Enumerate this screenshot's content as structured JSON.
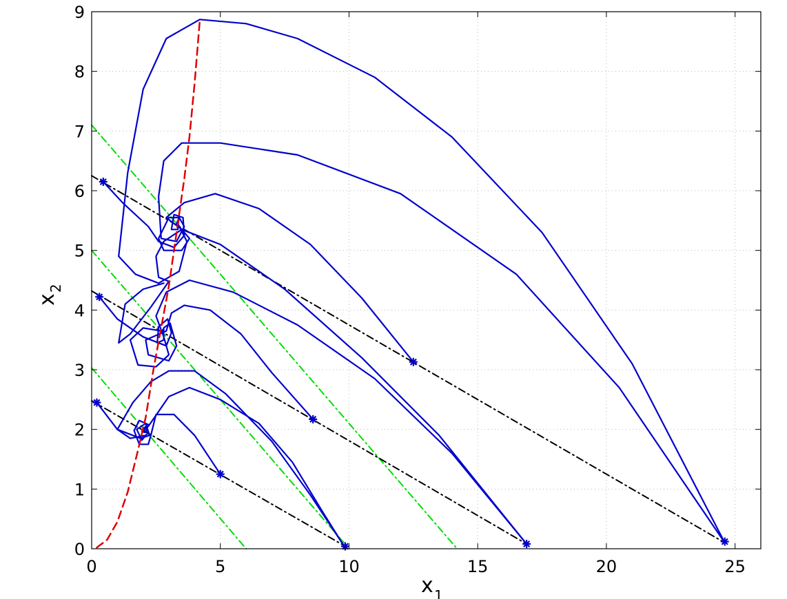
{
  "chart_data": {
    "type": "line",
    "xlim": [
      0,
      26
    ],
    "ylim": [
      0,
      9
    ],
    "xticks": [
      0,
      5,
      10,
      15,
      20,
      25
    ],
    "yticks": [
      0,
      1,
      2,
      3,
      4,
      5,
      6,
      7,
      8,
      9
    ],
    "xlabel": {
      "main": "x",
      "sub": "1"
    },
    "ylabel": {
      "main": "x",
      "sub": "2"
    },
    "grid": true,
    "legend": "none",
    "colors": {
      "trajectory": "#0000cc",
      "nullcline": "#e00000",
      "black_line": "#000000",
      "green_line": "#00dd00"
    },
    "series": [
      {
        "role": "nullcline",
        "style": "dashed-red",
        "points": [
          [
            0.2,
            0.02
          ],
          [
            0.6,
            0.15
          ],
          [
            1.0,
            0.45
          ],
          [
            1.4,
            0.95
          ],
          [
            1.8,
            1.65
          ],
          [
            2.1,
            2.2
          ],
          [
            2.4,
            3.0
          ],
          [
            2.7,
            3.7
          ],
          [
            3.0,
            4.4
          ],
          [
            3.3,
            5.3
          ],
          [
            3.6,
            6.2
          ],
          [
            3.8,
            6.9
          ],
          [
            4.0,
            7.8
          ],
          [
            4.2,
            8.85
          ]
        ]
      },
      {
        "role": "black",
        "style": "dashdot-black",
        "points": [
          [
            0,
            2.48
          ],
          [
            9.9,
            0.03
          ]
        ]
      },
      {
        "role": "black",
        "style": "dashdot-black",
        "points": [
          [
            0,
            4.32
          ],
          [
            16.9,
            0.08
          ]
        ]
      },
      {
        "role": "black",
        "style": "dashdot-black",
        "points": [
          [
            0,
            6.25
          ],
          [
            24.6,
            0.1
          ]
        ]
      },
      {
        "role": "green",
        "style": "dashdot-green",
        "points": [
          [
            0,
            3.03
          ],
          [
            6.0,
            0
          ]
        ]
      },
      {
        "role": "green",
        "style": "dashdot-green",
        "points": [
          [
            0,
            5.0
          ],
          [
            10.0,
            0
          ]
        ]
      },
      {
        "role": "green",
        "style": "dashdot-green",
        "points": [
          [
            0,
            7.1
          ],
          [
            14.2,
            0
          ]
        ]
      },
      {
        "role": "trajectory",
        "style": "solid-blue",
        "points": [
          [
            0.2,
            2.45
          ],
          [
            1.0,
            2.0
          ],
          [
            1.9,
            1.85
          ],
          [
            2.25,
            1.9
          ],
          [
            2.1,
            2.1
          ],
          [
            1.75,
            2.0
          ],
          [
            1.95,
            1.82
          ],
          [
            2.2,
            1.95
          ],
          [
            2.1,
            2.05
          ],
          [
            1.95,
            1.97
          ],
          [
            2.05,
            1.95
          ]
        ]
      },
      {
        "role": "trajectory",
        "style": "solid-blue",
        "points": [
          [
            5.0,
            1.25
          ],
          [
            4.0,
            1.9
          ],
          [
            3.2,
            2.25
          ],
          [
            2.5,
            2.25
          ],
          [
            2.3,
            1.9
          ],
          [
            2.2,
            1.75
          ],
          [
            1.85,
            1.75
          ],
          [
            1.65,
            1.98
          ],
          [
            1.85,
            2.15
          ],
          [
            2.2,
            2.08
          ],
          [
            2.1,
            1.95
          ],
          [
            2.0,
            1.98
          ]
        ]
      },
      {
        "role": "trajectory",
        "style": "solid-blue",
        "points": [
          [
            9.8,
            0.05
          ],
          [
            9.0,
            0.6
          ],
          [
            7.8,
            1.45
          ],
          [
            6.5,
            2.1
          ],
          [
            5.0,
            2.5
          ],
          [
            3.8,
            2.7
          ],
          [
            3.0,
            2.55
          ],
          [
            2.6,
            2.3
          ],
          [
            2.2,
            2.05
          ],
          [
            2.0,
            1.98
          ]
        ]
      },
      {
        "role": "trajectory",
        "style": "solid-blue",
        "points": [
          [
            9.8,
            0.05
          ],
          [
            8.5,
            0.9
          ],
          [
            7.0,
            1.8
          ],
          [
            5.2,
            2.6
          ],
          [
            4.0,
            2.98
          ],
          [
            3.0,
            2.98
          ],
          [
            2.3,
            2.8
          ],
          [
            1.6,
            2.45
          ],
          [
            1.0,
            2.0
          ],
          [
            1.5,
            1.85
          ],
          [
            2.1,
            1.9
          ]
        ]
      },
      {
        "role": "trajectory",
        "style": "solid-blue",
        "points": [
          [
            0.3,
            4.22
          ],
          [
            1.0,
            3.85
          ],
          [
            2.0,
            3.55
          ],
          [
            2.9,
            3.4
          ],
          [
            3.1,
            3.62
          ],
          [
            2.95,
            3.85
          ],
          [
            2.6,
            3.72
          ],
          [
            2.55,
            3.45
          ],
          [
            2.8,
            3.5
          ],
          [
            2.8,
            3.68
          ],
          [
            2.7,
            3.65
          ]
        ]
      },
      {
        "role": "trajectory",
        "style": "solid-blue",
        "points": [
          [
            8.6,
            2.17
          ],
          [
            7.0,
            2.95
          ],
          [
            5.8,
            3.6
          ],
          [
            4.6,
            4.0
          ],
          [
            3.6,
            4.08
          ],
          [
            3.1,
            3.95
          ],
          [
            2.9,
            3.65
          ],
          [
            2.1,
            3.5
          ],
          [
            2.2,
            3.25
          ],
          [
            3.0,
            3.15
          ],
          [
            3.3,
            3.4
          ],
          [
            3.05,
            3.78
          ],
          [
            2.8,
            3.7
          ],
          [
            2.75,
            3.62
          ]
        ]
      },
      {
        "role": "trajectory",
        "style": "solid-blue",
        "points": [
          [
            16.9,
            0.08
          ],
          [
            14.0,
            1.6
          ],
          [
            11.0,
            2.85
          ],
          [
            8.0,
            3.75
          ],
          [
            5.5,
            4.3
          ],
          [
            3.8,
            4.5
          ],
          [
            2.9,
            4.3
          ],
          [
            2.5,
            3.9
          ],
          [
            2.8,
            3.55
          ],
          [
            3.0,
            3.25
          ],
          [
            2.5,
            3.05
          ],
          [
            1.8,
            3.08
          ],
          [
            1.5,
            3.5
          ],
          [
            2.0,
            3.7
          ],
          [
            2.7,
            3.65
          ]
        ]
      },
      {
        "role": "trajectory",
        "style": "solid-blue",
        "points": [
          [
            16.9,
            0.08
          ],
          [
            13.5,
            1.9
          ],
          [
            10.5,
            3.2
          ],
          [
            7.5,
            4.35
          ],
          [
            5.0,
            5.1
          ],
          [
            3.5,
            5.35
          ],
          [
            2.8,
            5.15
          ],
          [
            2.5,
            4.9
          ],
          [
            2.6,
            4.55
          ],
          [
            3.0,
            4.48
          ],
          [
            2.3,
            4.05
          ],
          [
            1.5,
            3.6
          ],
          [
            1.05,
            3.45
          ],
          [
            1.3,
            4.1
          ],
          [
            2.0,
            4.35
          ],
          [
            2.8,
            4.45
          ]
        ]
      },
      {
        "role": "trajectory",
        "style": "solid-blue",
        "points": [
          [
            0.45,
            6.15
          ],
          [
            1.2,
            5.8
          ],
          [
            2.2,
            5.4
          ],
          [
            2.6,
            5.15
          ],
          [
            3.2,
            5.05
          ],
          [
            3.6,
            5.25
          ],
          [
            3.55,
            5.55
          ],
          [
            3.2,
            5.6
          ],
          [
            3.1,
            5.35
          ],
          [
            3.35,
            5.35
          ],
          [
            3.35,
            5.48
          ]
        ]
      },
      {
        "role": "trajectory",
        "style": "solid-blue",
        "points": [
          [
            12.5,
            3.13
          ],
          [
            10.5,
            4.2
          ],
          [
            8.5,
            5.1
          ],
          [
            6.5,
            5.7
          ],
          [
            4.8,
            5.95
          ],
          [
            3.6,
            5.8
          ],
          [
            2.9,
            5.55
          ],
          [
            3.5,
            5.35
          ],
          [
            3.8,
            5.2
          ],
          [
            3.5,
            5.0
          ],
          [
            2.8,
            5.0
          ],
          [
            2.6,
            5.2
          ],
          [
            3.0,
            5.55
          ],
          [
            3.4,
            5.55
          ],
          [
            3.35,
            5.42
          ]
        ]
      },
      {
        "role": "trajectory",
        "style": "solid-blue",
        "points": [
          [
            24.6,
            0.1
          ],
          [
            20.5,
            2.7
          ],
          [
            16.5,
            4.6
          ],
          [
            12.0,
            5.95
          ],
          [
            8.0,
            6.6
          ],
          [
            5.0,
            6.8
          ],
          [
            3.5,
            6.8
          ],
          [
            2.8,
            6.5
          ],
          [
            2.6,
            5.9
          ],
          [
            2.7,
            5.2
          ],
          [
            3.3,
            5.15
          ],
          [
            3.6,
            5.4
          ],
          [
            3.4,
            5.55
          ],
          [
            3.3,
            5.45
          ]
        ]
      },
      {
        "role": "trajectory",
        "style": "solid-blue",
        "points": [
          [
            24.6,
            0.1
          ],
          [
            21.0,
            3.1
          ],
          [
            17.5,
            5.3
          ],
          [
            14.0,
            6.9
          ],
          [
            11.0,
            7.9
          ],
          [
            8.0,
            8.55
          ],
          [
            6.0,
            8.8
          ],
          [
            4.2,
            8.87
          ],
          [
            2.9,
            8.55
          ],
          [
            2.0,
            7.7
          ],
          [
            1.4,
            6.3
          ],
          [
            1.05,
            4.9
          ],
          [
            1.7,
            4.6
          ],
          [
            2.6,
            4.45
          ],
          [
            3.4,
            4.65
          ],
          [
            3.7,
            5.15
          ],
          [
            3.35,
            5.45
          ]
        ]
      }
    ],
    "markers": [
      [
        0.45,
        6.15
      ],
      [
        0.3,
        4.22
      ],
      [
        0.2,
        2.45
      ],
      [
        5.0,
        1.25
      ],
      [
        8.6,
        2.17
      ],
      [
        12.5,
        3.13
      ],
      [
        9.85,
        0.04
      ],
      [
        16.9,
        0.08
      ],
      [
        24.6,
        0.12
      ]
    ]
  }
}
